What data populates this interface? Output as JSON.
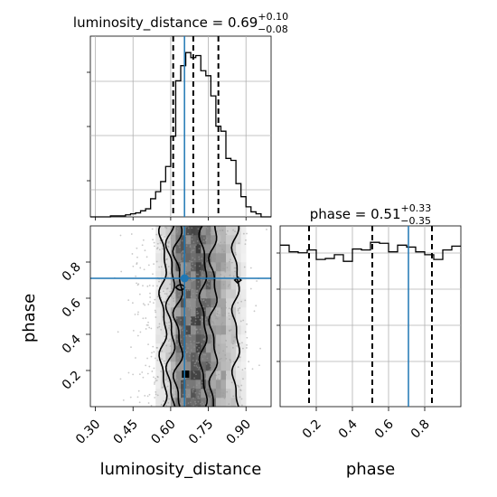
{
  "chart_data": {
    "type": "corner",
    "parameters": [
      "luminosity_distance",
      "phase"
    ],
    "titles": [
      {
        "param": "luminosity_distance",
        "prefix": "luminosity_distance = ",
        "value": "0.69",
        "plus": "+0.10",
        "minus": "−0.08"
      },
      {
        "param": "phase",
        "prefix": "phase = ",
        "value": "0.51",
        "plus": "+0.33",
        "minus": "−0.35"
      }
    ],
    "xlabels": [
      "luminosity_distance",
      "phase"
    ],
    "ylabel": "phase",
    "truth": {
      "luminosity_distance": 0.655,
      "phase": 0.71
    },
    "dist_hist": {
      "range": [
        0.28,
        1.0
      ],
      "bins": [
        0.28,
        0.3,
        0.32,
        0.34,
        0.36,
        0.38,
        0.4,
        0.42,
        0.44,
        0.46,
        0.48,
        0.5,
        0.52,
        0.54,
        0.56,
        0.58,
        0.6,
        0.62,
        0.64,
        0.66,
        0.68,
        0.7,
        0.72,
        0.74,
        0.76,
        0.78,
        0.8,
        0.82,
        0.84,
        0.86,
        0.88,
        0.9,
        0.92,
        0.94,
        0.96,
        0.98
      ],
      "counts": [
        0,
        0,
        0,
        0,
        1,
        1,
        1,
        2,
        3,
        4,
        6,
        8,
        18,
        25,
        35,
        50,
        80,
        135,
        150,
        163,
        158,
        160,
        145,
        140,
        120,
        90,
        85,
        58,
        56,
        33,
        20,
        10,
        5,
        3,
        0,
        0
      ],
      "quantiles": [
        0.61,
        0.69,
        0.79
      ]
    },
    "phase_hist": {
      "range": [
        0.0,
        1.0
      ],
      "bins": [
        0.0,
        0.05,
        0.1,
        0.15,
        0.2,
        0.25,
        0.3,
        0.35,
        0.4,
        0.45,
        0.5,
        0.55,
        0.6,
        0.65,
        0.7,
        0.75,
        0.8,
        0.85,
        0.9,
        0.95
      ],
      "counts": [
        170,
        163,
        162,
        165,
        155,
        156,
        160,
        153,
        166,
        165,
        173,
        172,
        163,
        170,
        168,
        163,
        160,
        155,
        165,
        169
      ],
      "quantiles": [
        0.16,
        0.51,
        0.84
      ]
    },
    "y_ticks_dist": [
      0.3,
      0.45,
      0.6,
      0.75,
      0.9
    ],
    "y_ticks_phase": [
      0.2,
      0.4,
      0.6,
      0.8
    ],
    "x_ticks_dist": [
      "0.30",
      "0.45",
      "0.60",
      "0.75",
      "0.90"
    ],
    "x_ticks_phase": [
      "0.2",
      "0.4",
      "0.6",
      "0.8"
    ],
    "scatter_hint": "2d density of samples",
    "grid": true
  }
}
